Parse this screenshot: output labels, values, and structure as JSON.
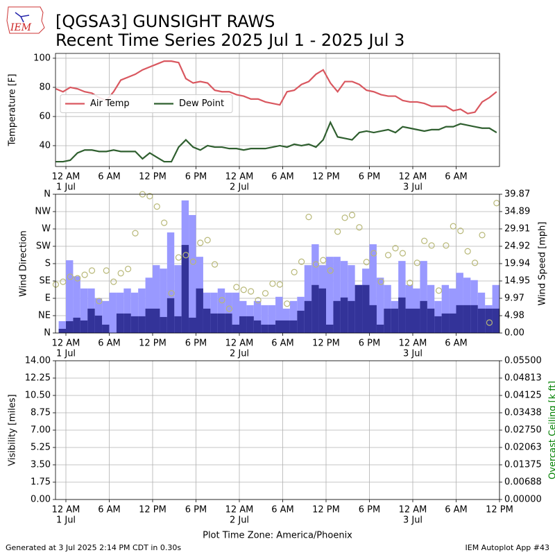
{
  "header": {
    "logo": "IEM",
    "title": "[QGSA3] GUNSIGHT RAWS",
    "subtitle": "Recent Time Series 2025 Jul 1 - 2025 Jul 3",
    "footer_left": "Generated at 3 Jul 2025 2:14 PM CDT in 0.30s",
    "footer_right": "IEM Autoplot App #43"
  },
  "chart_data": [
    {
      "type": "line",
      "ylabel": "Temperature [F]",
      "grid": true,
      "legend": "center left",
      "xlim": [
        -1.44,
        60
      ],
      "ylim": [
        25.7,
        103.3
      ],
      "yticks": [
        40,
        60,
        80,
        100
      ],
      "xticks": [
        {
          "value": 0,
          "label": "12 AM"
        },
        {
          "value": 6,
          "label": "6 AM"
        },
        {
          "value": 12,
          "label": "12 PM"
        },
        {
          "value": 18,
          "label": "6 PM"
        },
        {
          "value": 24,
          "label": "12 AM"
        },
        {
          "value": 30,
          "label": "6 AM"
        },
        {
          "value": 36,
          "label": "12 PM"
        },
        {
          "value": 42,
          "label": "6 PM"
        },
        {
          "value": 48,
          "label": "12 AM"
        },
        {
          "value": 54,
          "label": "6 AM"
        }
      ],
      "day_labels": [
        {
          "value": 0,
          "label": "1 Jul"
        },
        {
          "value": 24,
          "label": "2 Jul"
        },
        {
          "value": 48,
          "label": "3 Jul"
        }
      ],
      "x": [
        -1.4,
        -0.4,
        0.6,
        1.6,
        2.6,
        3.6,
        4.6,
        5.6,
        6.6,
        7.6,
        8.6,
        9.6,
        10.6,
        11.6,
        12.6,
        13.6,
        14.6,
        15.6,
        16.6,
        17.6,
        18.6,
        19.6,
        20.6,
        21.6,
        22.6,
        23.6,
        24.6,
        25.6,
        26.6,
        27.6,
        28.6,
        29.6,
        30.6,
        31.6,
        32.6,
        33.6,
        34.6,
        35.6,
        36.6,
        37.6,
        38.6,
        39.6,
        40.6,
        41.6,
        42.6,
        43.6,
        44.6,
        45.6,
        46.6,
        47.6,
        48.6,
        49.6,
        50.6,
        51.6,
        52.6,
        53.6,
        54.6,
        55.6,
        56.6,
        57.6,
        58.6,
        59.6
      ],
      "series": [
        {
          "name": "Air Temp",
          "color": "#d9575f",
          "values": [
            79,
            77,
            80,
            79,
            77,
            76,
            73,
            71,
            77,
            85,
            87,
            89,
            92,
            94,
            96,
            98,
            98,
            97,
            86,
            83,
            84,
            83,
            78,
            77,
            77,
            75,
            74,
            72,
            72,
            70,
            69,
            68,
            77,
            78,
            82,
            84,
            89,
            92,
            83,
            77,
            84,
            84,
            82,
            78,
            77,
            75,
            74,
            74,
            71,
            70,
            70,
            69,
            67,
            67,
            67,
            64,
            65,
            62,
            63,
            70,
            73,
            77
          ]
        },
        {
          "name": "Dew Point",
          "color": "#2f5f2f",
          "values": [
            29,
            29,
            30,
            35,
            37,
            37,
            36,
            36,
            37,
            36,
            36,
            36,
            31,
            35,
            32,
            29,
            29,
            39,
            44,
            39,
            37,
            40,
            39,
            39,
            38,
            38,
            37,
            38,
            38,
            38,
            39,
            40,
            39,
            41,
            40,
            41,
            39,
            44,
            56,
            46,
            45,
            44,
            49,
            50,
            49,
            50,
            51,
            49,
            53,
            52,
            51,
            50,
            51,
            51,
            53,
            53,
            55,
            54,
            53,
            52,
            52,
            49
          ]
        }
      ]
    },
    {
      "type": "wind",
      "ylabel": "Wind Direction",
      "y2label": "Wind Speed [mph]",
      "grid": true,
      "xlim": [
        -1.44,
        60
      ],
      "ylim": [
        0,
        360
      ],
      "y2lim": [
        0,
        39.87
      ],
      "yticks": [
        {
          "value": 0,
          "label": "N"
        },
        {
          "value": 45,
          "label": "NE"
        },
        {
          "value": 90,
          "label": "E"
        },
        {
          "value": 135,
          "label": "SE"
        },
        {
          "value": 180,
          "label": "S"
        },
        {
          "value": 225,
          "label": "SW"
        },
        {
          "value": 270,
          "label": "W"
        },
        {
          "value": 315,
          "label": "NW"
        },
        {
          "value": 360,
          "label": "N"
        }
      ],
      "y2ticks": [
        {
          "value": 0,
          "label": "0.00"
        },
        4.98,
        9.97,
        14.95,
        19.94,
        24.92,
        29.91,
        34.89,
        39.87
      ],
      "xticks": [
        {
          "value": 0,
          "label": "12 AM"
        },
        {
          "value": 6,
          "label": "6 AM"
        },
        {
          "value": 12,
          "label": "12 PM"
        },
        {
          "value": 18,
          "label": "6 PM"
        },
        {
          "value": 24,
          "label": "12 AM"
        },
        {
          "value": 30,
          "label": "6 AM"
        },
        {
          "value": 36,
          "label": "12 PM"
        },
        {
          "value": 42,
          "label": "6 PM"
        },
        {
          "value": 48,
          "label": "12 AM"
        },
        {
          "value": 54,
          "label": "6 AM"
        }
      ],
      "day_labels": [
        {
          "value": 0,
          "label": "1 Jul"
        },
        {
          "value": 24,
          "label": "2 Jul"
        },
        {
          "value": 48,
          "label": "3 Jul"
        }
      ],
      "x": [
        -1,
        0,
        1,
        2,
        3,
        4,
        5,
        6,
        7,
        8,
        9,
        10,
        11,
        12,
        13,
        14,
        15,
        16,
        17,
        18,
        19,
        20,
        21,
        22,
        23,
        24,
        25,
        26,
        27,
        28,
        29,
        30,
        31,
        32,
        33,
        34,
        35,
        36,
        37,
        38,
        39,
        40,
        41,
        42,
        43,
        44,
        45,
        46,
        47,
        48,
        49,
        50,
        51,
        52,
        53,
        54,
        55,
        56,
        57,
        58,
        59
      ],
      "series": [
        {
          "color": "#9999ff",
          "axis": "y2",
          "values": [
            3.4,
            20.9,
            16.3,
            12.8,
            12.8,
            10.0,
            9.2,
            11.6,
            11.6,
            12.8,
            11.6,
            12.8,
            15.9,
            19.5,
            18.5,
            28.9,
            19.5,
            38.1,
            33.9,
            21.9,
            11.6,
            11.6,
            12.8,
            11.6,
            11.6,
            9.2,
            8.0,
            9.2,
            8.0,
            8.0,
            10.4,
            7.0,
            9.2,
            10.4,
            19.5,
            25.5,
            19.5,
            21.9,
            21.9,
            20.7,
            19.5,
            13.8,
            18.5,
            25.5,
            15.9,
            13.8,
            9.2,
            20.7,
            13.8,
            12.8,
            20.7,
            13.8,
            9.2,
            13.8,
            12.8,
            17.3,
            15.9,
            15.2,
            11.6,
            8.0,
            13.8
          ]
        },
        {
          "color": "#333399",
          "axis": "y2",
          "values": [
            1.2,
            3.4,
            4.4,
            3.6,
            7.0,
            5.0,
            2.4,
            0,
            5.6,
            5.6,
            4.8,
            4.8,
            7.0,
            7.0,
            4.6,
            10.0,
            4.8,
            25.3,
            4.4,
            12.8,
            7.0,
            5.6,
            5.6,
            5.6,
            2.4,
            4.8,
            4.8,
            3.6,
            2.4,
            2.4,
            3.6,
            3.6,
            3.6,
            6.4,
            9.2,
            13.8,
            12.8,
            2.4,
            9.2,
            10.2,
            9.2,
            13.8,
            13.8,
            8.0,
            2.4,
            7.0,
            7.0,
            10.2,
            7.0,
            7.0,
            9.2,
            7.0,
            4.8,
            5.6,
            5.6,
            8.0,
            8.0,
            8.0,
            7.0,
            7.0,
            7.0
          ]
        }
      ],
      "direction_x": [
        -1.4,
        -0.4,
        0.6,
        1.6,
        2.6,
        3.6,
        4.6,
        5.6,
        6.6,
        7.6,
        8.6,
        9.6,
        10.6,
        11.6,
        12.6,
        13.6,
        14.6,
        15.6,
        16.6,
        17.6,
        18.6,
        19.6,
        20.6,
        21.6,
        22.6,
        23.6,
        24.6,
        25.6,
        26.6,
        27.6,
        28.6,
        29.6,
        30.6,
        31.6,
        32.6,
        33.6,
        34.6,
        35.6,
        36.6,
        37.6,
        38.6,
        39.6,
        40.6,
        41.6,
        42.6,
        43.6,
        44.6,
        45.6,
        46.6,
        47.6,
        48.6,
        49.6,
        50.6,
        51.6,
        52.6,
        53.6,
        54.6,
        55.6,
        56.6,
        57.6,
        58.6,
        59.6
      ],
      "direction": {
        "color": "#b8b878",
        "values": [
          126,
          133,
          146,
          142,
          151,
          162,
          83,
          162,
          133,
          155,
          166,
          259,
          360,
          355,
          328,
          286,
          103,
          196,
          202,
          185,
          234,
          241,
          178,
          85,
          63,
          119,
          112,
          108,
          85,
          103,
          128,
          126,
          76,
          158,
          185,
          301,
          178,
          189,
          162,
          263,
          299,
          306,
          274,
          184,
          207,
          133,
          202,
          220,
          207,
          130,
          182,
          239,
          227,
          110,
          227,
          277,
          265,
          212,
          182,
          254,
          27,
          337
        ]
      }
    },
    {
      "type": "line",
      "ylabel": "Visibility [miles]",
      "y2label": "Overcast Ceiling [k ft]",
      "y2label_color": "green",
      "xlabel": "Plot Time Zone: America/Phoenix",
      "grid": true,
      "xlim": [
        -1.44,
        60
      ],
      "ylim": [
        0,
        14
      ],
      "y2lim": [
        0,
        0.055
      ],
      "yticks": [
        {
          "value": 0,
          "label": "0.00"
        },
        1.75,
        {
          "value": 3.5,
          "label": "3.50"
        },
        5.25,
        {
          "value": 7,
          "label": "7.00"
        },
        8.75,
        {
          "value": 10.5,
          "label": "10.50"
        },
        12.25,
        {
          "value": 14,
          "label": "14.00"
        }
      ],
      "y2ticks": [
        {
          "value": 0,
          "label": "0.00000"
        },
        0.00688,
        0.01375,
        0.02063,
        {
          "value": 0.0275,
          "label": "0.02750"
        },
        0.03438,
        0.04125,
        0.04813,
        {
          "value": 0.055,
          "label": "0.05500"
        }
      ],
      "xticks": [
        {
          "value": 0,
          "label": "12 AM"
        },
        {
          "value": 6,
          "label": "6 AM"
        },
        {
          "value": 12,
          "label": "12 PM"
        },
        {
          "value": 18,
          "label": "6 PM"
        },
        {
          "value": 24,
          "label": "12 AM"
        },
        {
          "value": 30,
          "label": "6 AM"
        },
        {
          "value": 36,
          "label": "12 PM"
        },
        {
          "value": 42,
          "label": "6 PM"
        },
        {
          "value": 48,
          "label": "12 AM"
        },
        {
          "value": 54,
          "label": "6 AM"
        },
        {
          "value": 60,
          "label": "12 PM"
        }
      ],
      "day_labels": [
        {
          "value": 0,
          "label": "1 Jul"
        },
        {
          "value": 24,
          "label": "2 Jul"
        },
        {
          "value": 48,
          "label": "3 Jul"
        }
      ]
    }
  ]
}
